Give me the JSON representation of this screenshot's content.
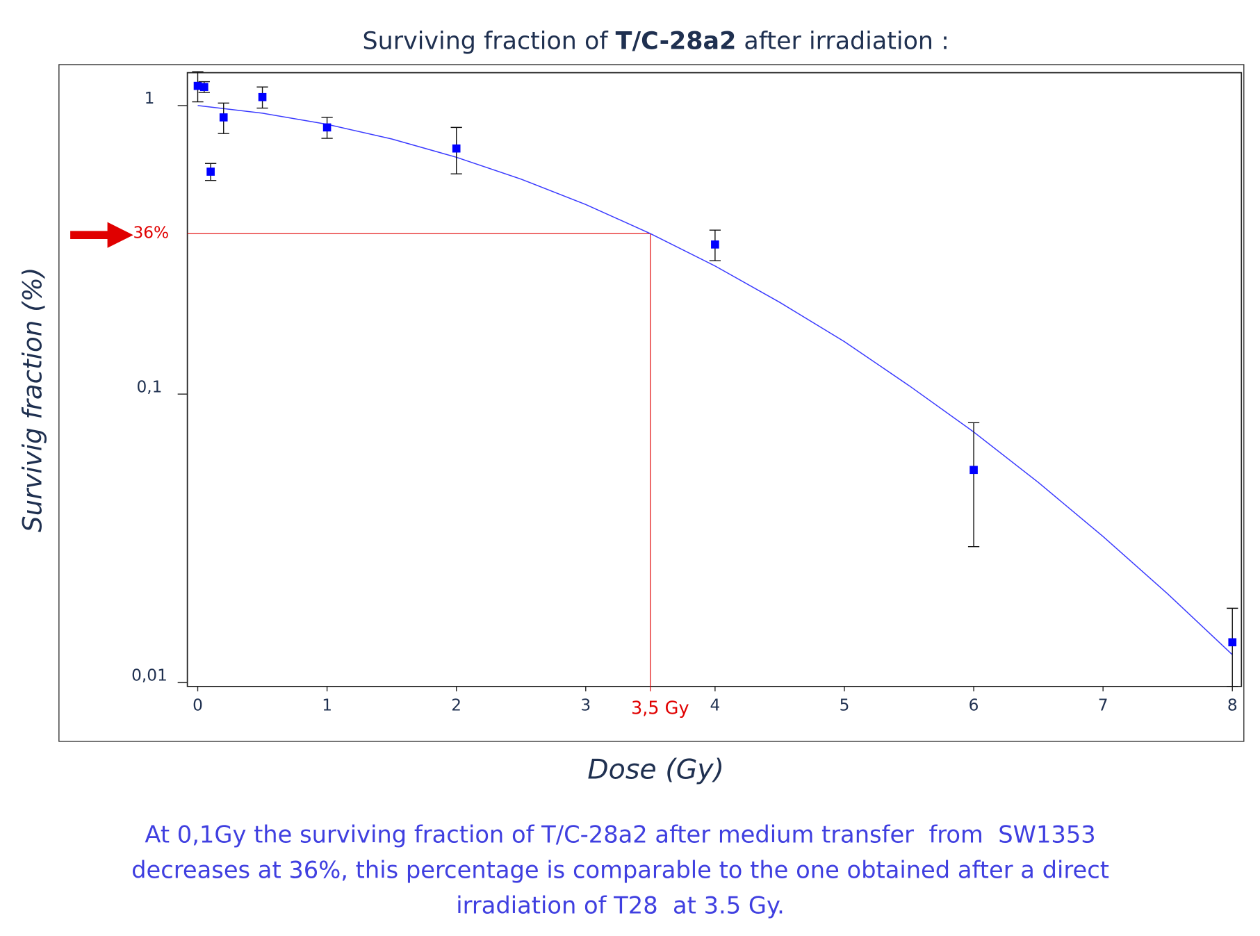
{
  "chart_data": {
    "type": "scatter",
    "title_parts": [
      "Surviving fraction of ",
      "T/C-28a2",
      " after irradiation :"
    ],
    "x_label": "Dose (Gy)",
    "y_label": "Survivig fraction (%)",
    "log_y": true,
    "xlim": [
      -0.08,
      8.07
    ],
    "ylim": [
      0.0097,
      1.3
    ],
    "xticks": [
      0,
      1,
      2,
      3,
      4,
      5,
      6,
      7,
      8
    ],
    "yticks": [
      {
        "value": 0.01,
        "label": "0,01"
      },
      {
        "value": 0.1,
        "label": "0,1"
      },
      1
    ],
    "points": {
      "color": "#0000ff",
      "x": [
        0,
        0.05,
        0.1,
        0.2,
        0.5,
        1,
        2,
        4,
        6,
        8
      ],
      "values": [
        1.17,
        1.16,
        0.59,
        0.91,
        1.07,
        0.84,
        0.71,
        0.33,
        0.0546,
        0.0138
      ],
      "errors": [
        0.14,
        0.05,
        0.04,
        0.11,
        0.09,
        0.07,
        0.13,
        0.04,
        0.025,
        0.0043
      ]
    },
    "fit": {
      "color": "#3a3aff",
      "x": [
        0,
        0.5,
        1,
        1.5,
        2,
        2.5,
        3,
        3.5,
        4,
        4.5,
        5,
        5.5,
        6,
        6.5,
        7,
        7.5,
        8
      ],
      "values": [
        1,
        0.941,
        0.861,
        0.766,
        0.662,
        0.556,
        0.454,
        0.36,
        0.278,
        0.208,
        0.152,
        0.107,
        0.0739,
        0.0494,
        0.0321,
        0.0203,
        0.0125
      ]
    },
    "reference": {
      "x": 3.5,
      "x_label": "3,5 Gy",
      "y": 0.36,
      "y_label": "36%",
      "color": "#e00000"
    },
    "caption_lines": [
      "At 0,1Gy the surviving fraction of T/C-28a2 after medium transfer  from  SW1353",
      "decreases at 36%, this percentage is comparable to the one obtained after a direct",
      "irradiation of T28  at 3.5 Gy."
    ]
  }
}
